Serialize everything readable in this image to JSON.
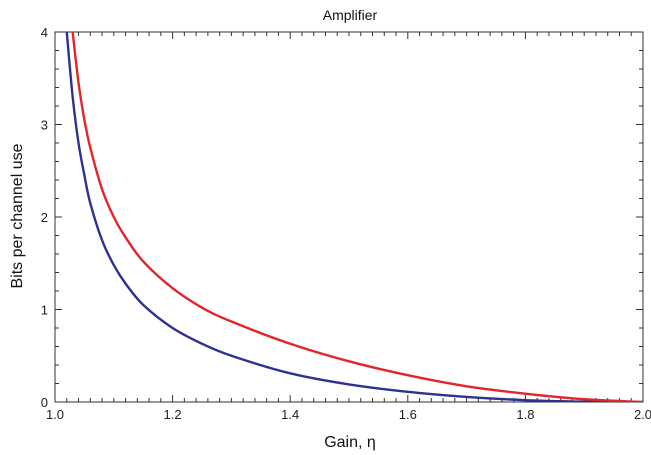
{
  "chart_data": {
    "type": "line",
    "title": "Amplifier",
    "xlabel": "Gain, η",
    "ylabel": "Bits per channel use",
    "xlim": [
      1.0,
      2.0
    ],
    "ylim": [
      0,
      4
    ],
    "x_ticks": [
      "1.0",
      "1.2",
      "1.4",
      "1.6",
      "1.8",
      "2.0"
    ],
    "y_ticks": [
      "0",
      "1",
      "2",
      "3",
      "4"
    ],
    "grid": false,
    "series": [
      {
        "color": "#2e3192",
        "x": [
          1.02,
          1.03,
          1.04,
          1.05,
          1.06,
          1.08,
          1.1,
          1.12,
          1.15,
          1.2,
          1.25,
          1.3,
          1.4,
          1.5,
          1.6,
          1.7,
          1.8,
          1.9,
          2.0
        ],
        "y": [
          4.0,
          3.3,
          2.8,
          2.45,
          2.15,
          1.75,
          1.48,
          1.28,
          1.05,
          0.8,
          0.63,
          0.5,
          0.31,
          0.19,
          0.11,
          0.055,
          0.02,
          0.004,
          0.0
        ]
      },
      {
        "color": "#e3252b",
        "x": [
          1.03,
          1.04,
          1.05,
          1.06,
          1.08,
          1.1,
          1.12,
          1.15,
          1.2,
          1.25,
          1.3,
          1.4,
          1.5,
          1.6,
          1.7,
          1.8,
          1.9,
          2.0
        ],
        "y": [
          4.0,
          3.45,
          3.05,
          2.75,
          2.3,
          2.0,
          1.78,
          1.52,
          1.23,
          1.02,
          0.87,
          0.63,
          0.44,
          0.29,
          0.17,
          0.09,
          0.03,
          0.0
        ]
      }
    ]
  }
}
